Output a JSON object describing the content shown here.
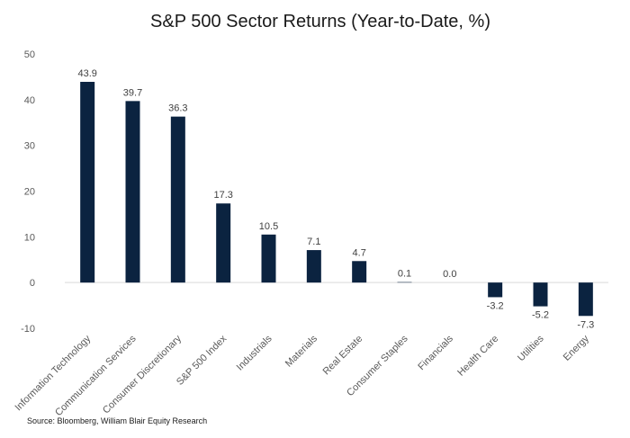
{
  "chart_data": {
    "type": "bar",
    "title": "S&P 500 Sector Returns (Year-to-Date, %)",
    "categories": [
      "Information Technology",
      "Communication Services",
      "Consumer Discretionary",
      "S&P 500  Index",
      "Industrials",
      "Materials",
      "Real Estate",
      "Consumer Staples",
      "Financials",
      "Health Care",
      "Utilities",
      "Energy"
    ],
    "values": [
      43.9,
      39.7,
      36.3,
      17.3,
      10.5,
      7.1,
      4.7,
      0.1,
      0.0,
      -3.2,
      -5.2,
      -7.3
    ],
    "value_labels": [
      "43.9",
      "39.7",
      "36.3",
      "17.3",
      "10.5",
      "7.1",
      "4.7",
      "0.1",
      "0.0",
      "-3.2",
      "-5.2",
      "-7.3"
    ],
    "y_ticks": [
      -10,
      0,
      10,
      20,
      30,
      40,
      50
    ],
    "y_tick_labels": [
      "-10",
      "0",
      "10",
      "20",
      "30",
      "40",
      "50"
    ],
    "ylim": [
      -10,
      50
    ],
    "xlabel": "",
    "ylabel": "",
    "grid": false,
    "bar_color": "#0b2340"
  },
  "source": "Source: Bloomberg, William Blair Equity Research"
}
